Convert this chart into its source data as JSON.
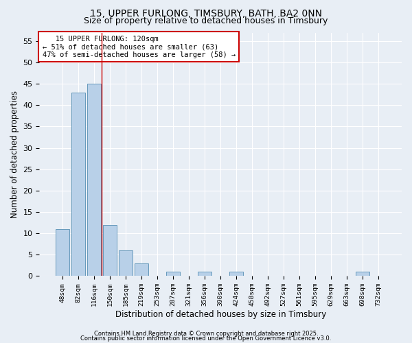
{
  "title1": "15, UPPER FURLONG, TIMSBURY, BATH, BA2 0NN",
  "title2": "Size of property relative to detached houses in Timsbury",
  "xlabel": "Distribution of detached houses by size in Timsbury",
  "ylabel": "Number of detached properties",
  "bar_labels": [
    "48sqm",
    "82sqm",
    "116sqm",
    "150sqm",
    "185sqm",
    "219sqm",
    "253sqm",
    "287sqm",
    "321sqm",
    "356sqm",
    "390sqm",
    "424sqm",
    "458sqm",
    "492sqm",
    "527sqm",
    "561sqm",
    "595sqm",
    "629sqm",
    "663sqm",
    "698sqm",
    "732sqm"
  ],
  "bar_values": [
    11,
    43,
    45,
    12,
    6,
    3,
    0,
    1,
    0,
    1,
    0,
    1,
    0,
    0,
    0,
    0,
    0,
    0,
    0,
    1,
    0
  ],
  "bar_color": "#b8d0e8",
  "bar_edge_color": "#6699bb",
  "ylim": [
    0,
    57
  ],
  "yticks": [
    0,
    5,
    10,
    15,
    20,
    25,
    30,
    35,
    40,
    45,
    50,
    55
  ],
  "red_line_x": 2.47,
  "annotation_line1": "   15 UPPER FURLONG: 120sqm",
  "annotation_line2": "← 51% of detached houses are smaller (63)",
  "annotation_line3": "47% of semi-detached houses are larger (58) →",
  "annotation_box_color": "#ffffff",
  "annotation_box_edge_color": "#cc0000",
  "footer1": "Contains HM Land Registry data © Crown copyright and database right 2025.",
  "footer2": "Contains public sector information licensed under the Open Government Licence v3.0.",
  "bg_color": "#e8eef5",
  "plot_bg_color": "#e8eef5",
  "grid_color": "#ffffff",
  "title_fontsize": 10,
  "subtitle_fontsize": 9,
  "annotation_fontsize": 7.5,
  "footer_fontsize": 6
}
